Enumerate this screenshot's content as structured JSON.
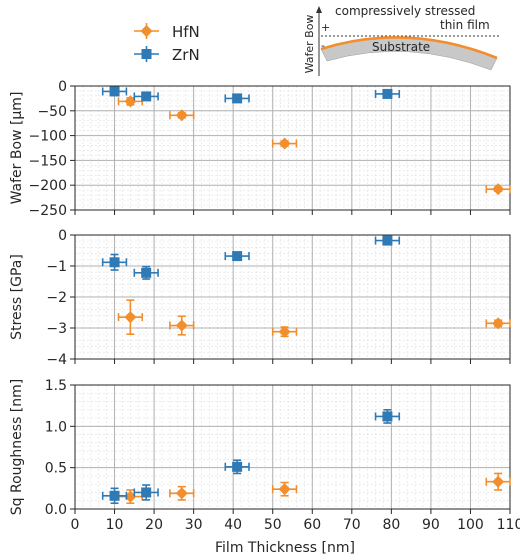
{
  "legend": {
    "items": [
      {
        "name": "HfN",
        "color": "#f28e2b",
        "marker": "diamond"
      },
      {
        "name": "ZrN",
        "color": "#2f7ab5",
        "marker": "square"
      }
    ]
  },
  "inset": {
    "axis_label": "Wafer Bow",
    "plus": "+",
    "minus": "-",
    "film_label_1": "compressively stressed",
    "film_label_2": "thin film",
    "substrate_label": "Substrate"
  },
  "colors": {
    "hfn": "#f28e2b",
    "zrn": "#2f7ab5",
    "grid_major": "#b0b0b0",
    "grid_minor": "#e4e4e4"
  },
  "chart_data": [
    {
      "type": "scatter",
      "error_bars": true,
      "xlabel": "",
      "ylabel": "Wafer Bow [µm]",
      "xlim": [
        0,
        110
      ],
      "ylim": [
        -250,
        0
      ],
      "x_ticks": [
        0,
        10,
        20,
        30,
        40,
        50,
        60,
        70,
        80,
        90,
        100,
        110
      ],
      "y_ticks": [
        0,
        -50,
        -100,
        -150,
        -200,
        -250
      ],
      "y_tick_labels": [
        "0",
        "−50",
        "−100",
        "−150",
        "−200",
        "−250"
      ],
      "grid": true,
      "series": [
        {
          "name": "HfN",
          "points": [
            {
              "x": 14,
              "y": -31,
              "xerr": 3,
              "yerr": 7
            },
            {
              "x": 27,
              "y": -59,
              "xerr": 3,
              "yerr": 5
            },
            {
              "x": 53,
              "y": -116,
              "xerr": 3,
              "yerr": 5
            },
            {
              "x": 107,
              "y": -208,
              "xerr": 3,
              "yerr": 4
            }
          ]
        },
        {
          "name": "ZrN",
          "points": [
            {
              "x": 10,
              "y": -11,
              "xerr": 3,
              "yerr": 6
            },
            {
              "x": 18,
              "y": -21,
              "xerr": 3,
              "yerr": 5
            },
            {
              "x": 41,
              "y": -25,
              "xerr": 3,
              "yerr": 5
            },
            {
              "x": 79,
              "y": -16,
              "xerr": 3,
              "yerr": 5
            }
          ]
        }
      ]
    },
    {
      "type": "scatter",
      "error_bars": true,
      "xlabel": "",
      "ylabel": "Stress [GPa]",
      "xlim": [
        0,
        110
      ],
      "ylim": [
        -4,
        0
      ],
      "x_ticks": [
        0,
        10,
        20,
        30,
        40,
        50,
        60,
        70,
        80,
        90,
        100,
        110
      ],
      "y_ticks": [
        0,
        -1,
        -2,
        -3,
        -4
      ],
      "y_tick_labels": [
        "0",
        "−1",
        "−2",
        "−3",
        "−4"
      ],
      "grid": true,
      "series": [
        {
          "name": "HfN",
          "points": [
            {
              "x": 14,
              "y": -2.65,
              "xerr": 3,
              "yerr": 0.55
            },
            {
              "x": 27,
              "y": -2.92,
              "xerr": 3,
              "yerr": 0.3
            },
            {
              "x": 53,
              "y": -3.12,
              "xerr": 3,
              "yerr": 0.15
            },
            {
              "x": 107,
              "y": -2.85,
              "xerr": 3,
              "yerr": 0.1
            }
          ]
        },
        {
          "name": "ZrN",
          "points": [
            {
              "x": 10,
              "y": -0.88,
              "xerr": 3,
              "yerr": 0.25
            },
            {
              "x": 18,
              "y": -1.22,
              "xerr": 3,
              "yerr": 0.2
            },
            {
              "x": 41,
              "y": -0.68,
              "xerr": 3,
              "yerr": 0.1
            },
            {
              "x": 79,
              "y": -0.18,
              "xerr": 3,
              "yerr": 0.1
            }
          ]
        }
      ]
    },
    {
      "type": "scatter",
      "error_bars": true,
      "xlabel": "Film Thickness [nm]",
      "ylabel": "Sq Roughness [nm]",
      "xlim": [
        0,
        110
      ],
      "ylim": [
        0,
        1.5
      ],
      "x_ticks": [
        0,
        10,
        20,
        30,
        40,
        50,
        60,
        70,
        80,
        90,
        100,
        110
      ],
      "y_ticks": [
        0,
        0.5,
        1.0,
        1.5
      ],
      "y_tick_labels": [
        "0.0",
        "0.5",
        "1.0",
        "1.5"
      ],
      "grid": true,
      "series": [
        {
          "name": "HfN",
          "points": [
            {
              "x": 14,
              "y": 0.15,
              "xerr": 3,
              "yerr": 0.08
            },
            {
              "x": 27,
              "y": 0.19,
              "xerr": 3,
              "yerr": 0.08
            },
            {
              "x": 53,
              "y": 0.24,
              "xerr": 3,
              "yerr": 0.08
            },
            {
              "x": 107,
              "y": 0.33,
              "xerr": 3,
              "yerr": 0.1
            }
          ]
        },
        {
          "name": "ZrN",
          "points": [
            {
              "x": 10,
              "y": 0.16,
              "xerr": 3,
              "yerr": 0.09
            },
            {
              "x": 18,
              "y": 0.2,
              "xerr": 3,
              "yerr": 0.09
            },
            {
              "x": 41,
              "y": 0.51,
              "xerr": 3,
              "yerr": 0.08
            },
            {
              "x": 79,
              "y": 1.12,
              "xerr": 3,
              "yerr": 0.08
            }
          ]
        }
      ]
    }
  ]
}
